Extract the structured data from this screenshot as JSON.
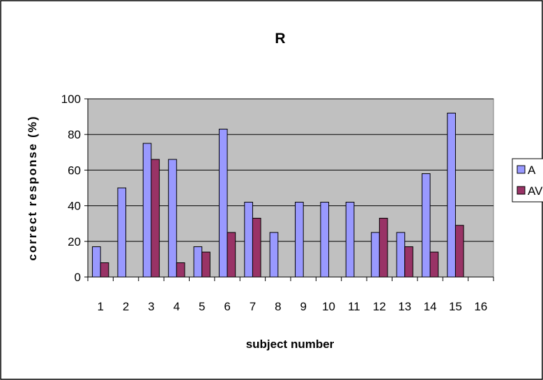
{
  "chart_data": {
    "type": "bar",
    "title": "R",
    "xlabel": "subject number",
    "ylabel": "correct response (%)",
    "categories": [
      "1",
      "2",
      "3",
      "4",
      "5",
      "6",
      "7",
      "8",
      "9",
      "10",
      "11",
      "12",
      "13",
      "14",
      "15",
      "16"
    ],
    "ylim": [
      0,
      100
    ],
    "yticks": [
      0,
      20,
      40,
      60,
      80,
      100
    ],
    "grid": true,
    "legend_position": "right",
    "series": [
      {
        "name": "A",
        "color": "#9999ff",
        "values": [
          17,
          50,
          75,
          66,
          17,
          83,
          42,
          25,
          42,
          42,
          42,
          25,
          25,
          58,
          92,
          0
        ]
      },
      {
        "name": "AV",
        "color": "#993366",
        "values": [
          8,
          0,
          66,
          8,
          14,
          25,
          33,
          0,
          0,
          0,
          0,
          33,
          17,
          14,
          29,
          0
        ]
      }
    ],
    "plot_background": "#c0c0c0"
  }
}
